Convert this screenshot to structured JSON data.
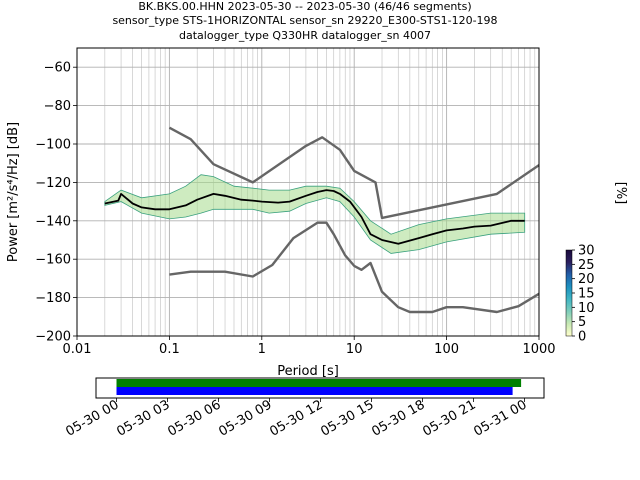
{
  "figure": {
    "title_lines": [
      "BK.BKS.00.HHN   2023-05-30 -- 2023-05-30  (46/46 segments)",
      "sensor_type STS-1HORIZONTAL sensor_sn 29220_E300-STS1-120-198",
      "datalogger_type Q330HR datalogger_sn 4007"
    ]
  },
  "chart_data": [
    {
      "type": "line",
      "xlabel": "Period [s]",
      "ylabel": "Power [m²/s⁴/Hz] [dB]",
      "xscale": "log",
      "xlim": [
        0.01,
        1000
      ],
      "ylim": [
        -200,
        -50
      ],
      "x_ticks": [
        {
          "value": 0.01,
          "label": "0.01"
        },
        {
          "value": 0.1,
          "label": "0.1"
        },
        {
          "value": 1,
          "label": "1"
        },
        {
          "value": 10,
          "label": "10"
        },
        {
          "value": 100,
          "label": "100"
        },
        {
          "value": 1000,
          "label": "1000"
        }
      ],
      "y_ticks": [
        -60,
        -80,
        -100,
        -120,
        -140,
        -160,
        -180,
        -200
      ],
      "grid": true,
      "series": [
        {
          "role": "mean",
          "color": "#000000",
          "points": [
            [
              0.02,
              -131
            ],
            [
              0.025,
              -130
            ],
            [
              0.028,
              -129.5
            ],
            [
              0.03,
              -126
            ],
            [
              0.04,
              -131
            ],
            [
              0.05,
              -133
            ],
            [
              0.07,
              -134
            ],
            [
              0.1,
              -134
            ],
            [
              0.15,
              -132
            ],
            [
              0.2,
              -129
            ],
            [
              0.3,
              -126
            ],
            [
              0.4,
              -127
            ],
            [
              0.6,
              -129
            ],
            [
              0.8,
              -129.5
            ],
            [
              1.0,
              -130
            ],
            [
              1.5,
              -130.5
            ],
            [
              2.0,
              -130
            ],
            [
              3.0,
              -127
            ],
            [
              4.0,
              -125
            ],
            [
              5.0,
              -124
            ],
            [
              6.0,
              -124.5
            ],
            [
              7.0,
              -126
            ],
            [
              9.0,
              -130
            ],
            [
              12.0,
              -138
            ],
            [
              15.0,
              -147
            ],
            [
              20.0,
              -150
            ],
            [
              30.0,
              -152
            ],
            [
              50.0,
              -149
            ],
            [
              70.0,
              -147
            ],
            [
              100.0,
              -145
            ],
            [
              150.0,
              -144
            ],
            [
              200.0,
              -143
            ],
            [
              300.0,
              -142.5
            ],
            [
              500.0,
              -140
            ],
            [
              700.0,
              -140
            ]
          ]
        },
        {
          "role": "noise-model-high",
          "color": "#666666",
          "points": [
            [
              0.1,
              -91.5
            ],
            [
              0.17,
              -97.5
            ],
            [
              0.3,
              -110.5
            ],
            [
              0.8,
              -120
            ],
            [
              3.0,
              -101
            ],
            [
              4.5,
              -96.5
            ],
            [
              7.0,
              -103
            ],
            [
              10.0,
              -114
            ],
            [
              17.0,
              -120
            ],
            [
              20.0,
              -138.5
            ],
            [
              350.0,
              -126
            ],
            [
              1000.0,
              -111
            ]
          ]
        },
        {
          "role": "noise-model-low",
          "color": "#666666",
          "points": [
            [
              0.1,
              -168
            ],
            [
              0.17,
              -166.5
            ],
            [
              0.4,
              -166.5
            ],
            [
              0.8,
              -169
            ],
            [
              1.3,
              -163
            ],
            [
              2.2,
              -149
            ],
            [
              4.0,
              -141
            ],
            [
              5.0,
              -141
            ],
            [
              6.0,
              -147
            ],
            [
              8.0,
              -158
            ],
            [
              10.0,
              -163.5
            ],
            [
              12.0,
              -165.5
            ],
            [
              15.0,
              -162
            ],
            [
              20.0,
              -177
            ],
            [
              30.0,
              -185
            ],
            [
              40.0,
              -187.5
            ],
            [
              70.0,
              -187.5
            ],
            [
              100.0,
              -185
            ],
            [
              150.0,
              -185
            ],
            [
              350.0,
              -187.5
            ],
            [
              600.0,
              -184.5
            ],
            [
              1000.0,
              -178
            ]
          ]
        }
      ],
      "envelope": {
        "upper": [
          [
            0.02,
            -130
          ],
          [
            0.03,
            -124
          ],
          [
            0.05,
            -128
          ],
          [
            0.1,
            -126
          ],
          [
            0.15,
            -122
          ],
          [
            0.22,
            -116
          ],
          [
            0.3,
            -117
          ],
          [
            0.5,
            -122
          ],
          [
            0.8,
            -123
          ],
          [
            1.2,
            -124
          ],
          [
            2.0,
            -124
          ],
          [
            3.0,
            -122
          ],
          [
            5.0,
            -122
          ],
          [
            7.0,
            -123
          ],
          [
            10.0,
            -130
          ],
          [
            15.0,
            -140
          ],
          [
            25.0,
            -147
          ],
          [
            50.0,
            -142
          ],
          [
            100.0,
            -139
          ],
          [
            300.0,
            -136
          ],
          [
            700.0,
            -136
          ]
        ],
        "lower": [
          [
            0.02,
            -132
          ],
          [
            0.03,
            -130
          ],
          [
            0.05,
            -136
          ],
          [
            0.1,
            -139
          ],
          [
            0.15,
            -138
          ],
          [
            0.22,
            -136
          ],
          [
            0.3,
            -134
          ],
          [
            0.5,
            -134
          ],
          [
            0.8,
            -134
          ],
          [
            1.2,
            -136
          ],
          [
            2.0,
            -135
          ],
          [
            3.0,
            -131
          ],
          [
            5.0,
            -128
          ],
          [
            7.0,
            -130
          ],
          [
            10.0,
            -138
          ],
          [
            15.0,
            -150
          ],
          [
            25.0,
            -157
          ],
          [
            50.0,
            -155
          ],
          [
            100.0,
            -151
          ],
          [
            300.0,
            -147
          ],
          [
            700.0,
            -146
          ]
        ]
      }
    },
    {
      "type": "colorbar",
      "label": "[%]",
      "range": [
        0,
        30
      ],
      "ticks": [
        0,
        5,
        10,
        15,
        20,
        25,
        30
      ],
      "colors": [
        "#ffffcc",
        "#c7e9b4",
        "#7fcdbb",
        "#41b6c4",
        "#1d91c0",
        "#225ea8",
        "#2b1f5e",
        "#1a0a3c"
      ]
    },
    {
      "type": "timeline",
      "tick_labels": [
        "05-30 00",
        "05-30 03",
        "05-30 06",
        "05-30 09",
        "05-30 12",
        "05-30 15",
        "05-30 18",
        "05-30 21",
        "05-31 00"
      ],
      "bars": [
        {
          "color": "#008000",
          "start_hours": 0,
          "end_hours": 23.8
        },
        {
          "color": "#0000ff",
          "start_hours": 0,
          "end_hours": 23.3
        }
      ]
    }
  ]
}
